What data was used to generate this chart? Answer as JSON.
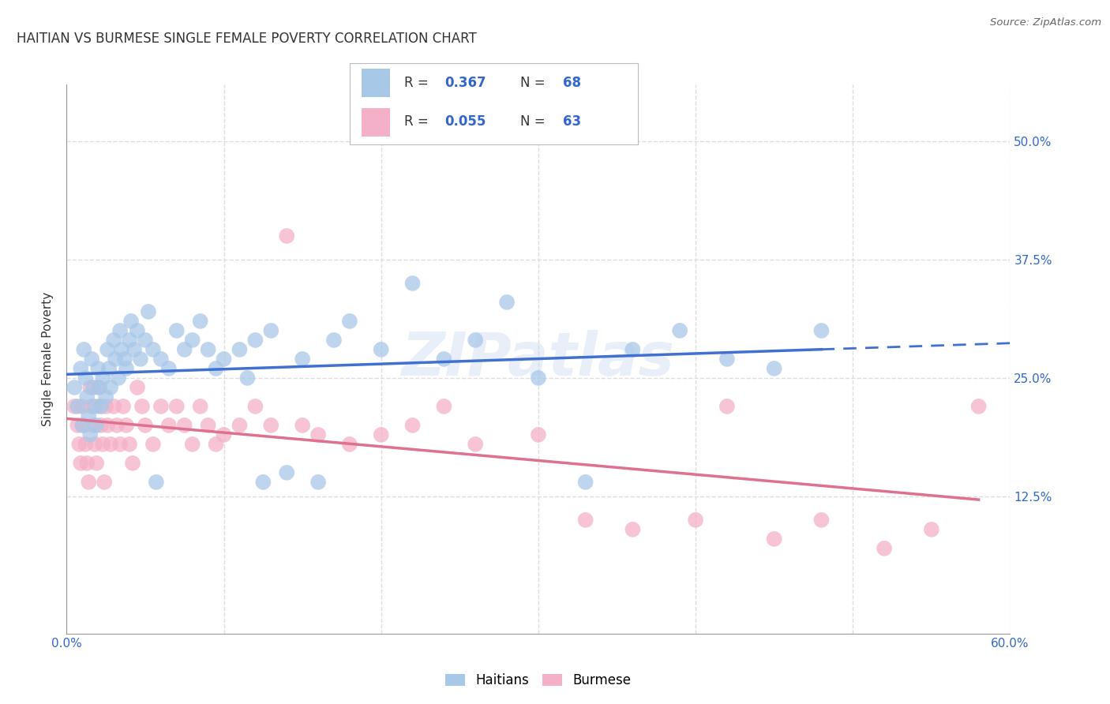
{
  "title": "HAITIAN VS BURMESE SINGLE FEMALE POVERTY CORRELATION CHART",
  "source": "Source: ZipAtlas.com",
  "ylabel": "Single Female Poverty",
  "ytick_labels": [
    "12.5%",
    "25.0%",
    "37.5%",
    "50.0%"
  ],
  "ytick_values": [
    0.125,
    0.25,
    0.375,
    0.5
  ],
  "xlim": [
    0.0,
    0.6
  ],
  "ylim": [
    -0.02,
    0.56
  ],
  "haitian_color": "#a8c8e8",
  "burmese_color": "#f4b0c8",
  "haitian_line_color": "#4070d0",
  "burmese_line_color": "#e07090",
  "background_color": "#ffffff",
  "grid_color": "#dddddd",
  "watermark": "ZIPatlas",
  "title_fontsize": 12,
  "axis_fontsize": 11,
  "tick_fontsize": 11,
  "haitian_x": [
    0.005,
    0.007,
    0.009,
    0.01,
    0.011,
    0.012,
    0.013,
    0.014,
    0.015,
    0.016,
    0.017,
    0.018,
    0.019,
    0.02,
    0.021,
    0.022,
    0.023,
    0.025,
    0.026,
    0.027,
    0.028,
    0.03,
    0.031,
    0.033,
    0.034,
    0.035,
    0.037,
    0.038,
    0.04,
    0.041,
    0.043,
    0.045,
    0.047,
    0.05,
    0.052,
    0.055,
    0.057,
    0.06,
    0.065,
    0.07,
    0.075,
    0.08,
    0.085,
    0.09,
    0.095,
    0.1,
    0.11,
    0.115,
    0.12,
    0.125,
    0.13,
    0.14,
    0.15,
    0.16,
    0.17,
    0.18,
    0.2,
    0.22,
    0.24,
    0.26,
    0.28,
    0.3,
    0.33,
    0.36,
    0.39,
    0.42,
    0.45,
    0.48
  ],
  "haitian_y": [
    0.24,
    0.22,
    0.26,
    0.2,
    0.28,
    0.25,
    0.23,
    0.21,
    0.19,
    0.27,
    0.24,
    0.22,
    0.2,
    0.26,
    0.24,
    0.22,
    0.25,
    0.23,
    0.28,
    0.26,
    0.24,
    0.29,
    0.27,
    0.25,
    0.3,
    0.28,
    0.27,
    0.26,
    0.29,
    0.31,
    0.28,
    0.3,
    0.27,
    0.29,
    0.32,
    0.28,
    0.14,
    0.27,
    0.26,
    0.3,
    0.28,
    0.29,
    0.31,
    0.28,
    0.26,
    0.27,
    0.28,
    0.25,
    0.29,
    0.14,
    0.3,
    0.15,
    0.27,
    0.14,
    0.29,
    0.31,
    0.28,
    0.35,
    0.27,
    0.29,
    0.33,
    0.25,
    0.14,
    0.28,
    0.3,
    0.27,
    0.26,
    0.3
  ],
  "burmese_x": [
    0.005,
    0.007,
    0.008,
    0.009,
    0.01,
    0.011,
    0.012,
    0.013,
    0.014,
    0.015,
    0.016,
    0.017,
    0.018,
    0.019,
    0.02,
    0.021,
    0.022,
    0.023,
    0.024,
    0.025,
    0.026,
    0.028,
    0.03,
    0.032,
    0.034,
    0.036,
    0.038,
    0.04,
    0.042,
    0.045,
    0.048,
    0.05,
    0.055,
    0.06,
    0.065,
    0.07,
    0.075,
    0.08,
    0.085,
    0.09,
    0.095,
    0.1,
    0.11,
    0.12,
    0.13,
    0.14,
    0.15,
    0.16,
    0.18,
    0.2,
    0.22,
    0.24,
    0.26,
    0.3,
    0.33,
    0.36,
    0.4,
    0.42,
    0.45,
    0.48,
    0.52,
    0.55,
    0.58
  ],
  "burmese_y": [
    0.22,
    0.2,
    0.18,
    0.16,
    0.22,
    0.2,
    0.18,
    0.16,
    0.14,
    0.24,
    0.22,
    0.2,
    0.18,
    0.16,
    0.24,
    0.22,
    0.2,
    0.18,
    0.14,
    0.22,
    0.2,
    0.18,
    0.22,
    0.2,
    0.18,
    0.22,
    0.2,
    0.18,
    0.16,
    0.24,
    0.22,
    0.2,
    0.18,
    0.22,
    0.2,
    0.22,
    0.2,
    0.18,
    0.22,
    0.2,
    0.18,
    0.19,
    0.2,
    0.22,
    0.2,
    0.4,
    0.2,
    0.19,
    0.18,
    0.19,
    0.2,
    0.22,
    0.18,
    0.19,
    0.1,
    0.09,
    0.1,
    0.22,
    0.08,
    0.1,
    0.07,
    0.09,
    0.22
  ]
}
